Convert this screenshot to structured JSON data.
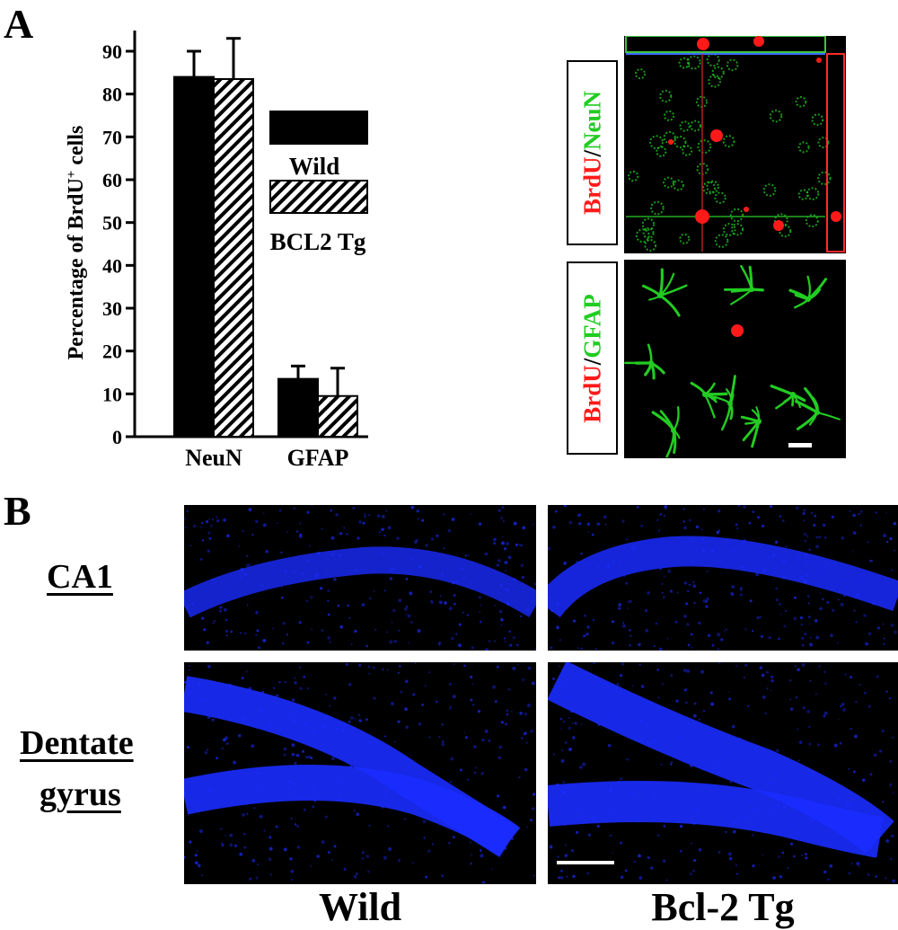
{
  "panels": {
    "a": "A",
    "b": "B"
  },
  "chart_data": {
    "type": "bar",
    "title": "",
    "xlabel": "",
    "ylabel": "Percentage of BrdU+ cells",
    "ylabel_main": "Percentage of BrdU",
    "ylabel_sup": "+",
    "ylabel_tail": " cells",
    "ylim": [
      0,
      95
    ],
    "yticks": [
      "0",
      "10",
      "20",
      "30",
      "40",
      "50",
      "60",
      "70",
      "80",
      "90"
    ],
    "categories": [
      "NeuN",
      "GFAP"
    ],
    "series": [
      {
        "name": "Wild",
        "pattern": "solid",
        "color": "#000000",
        "values": [
          84,
          13.5
        ],
        "errors": [
          6,
          3
        ]
      },
      {
        "name": "BCL2 Tg",
        "pattern": "hatched",
        "color": "#000000",
        "values": [
          83.5,
          9.5
        ],
        "errors": [
          9.5,
          6.5
        ]
      }
    ],
    "legend": "right, inside"
  },
  "stain_labels": {
    "neun": {
      "red": "BrdU",
      "slash": "/",
      "green": "NeuN"
    },
    "gfap": {
      "red": "BrdU",
      "slash": "/",
      "green": "GFAP"
    }
  },
  "rows": {
    "ca1": "CA1",
    "dentate_1": "Dentate",
    "dentate_2": "gyrus"
  },
  "columns": {
    "wild": "Wild",
    "bcl2": "Bcl-2 Tg"
  },
  "colors": {
    "dapi_blue": "#1a2cff",
    "brdu_red": "#ff1a1a",
    "marker_green": "#22cc22"
  }
}
